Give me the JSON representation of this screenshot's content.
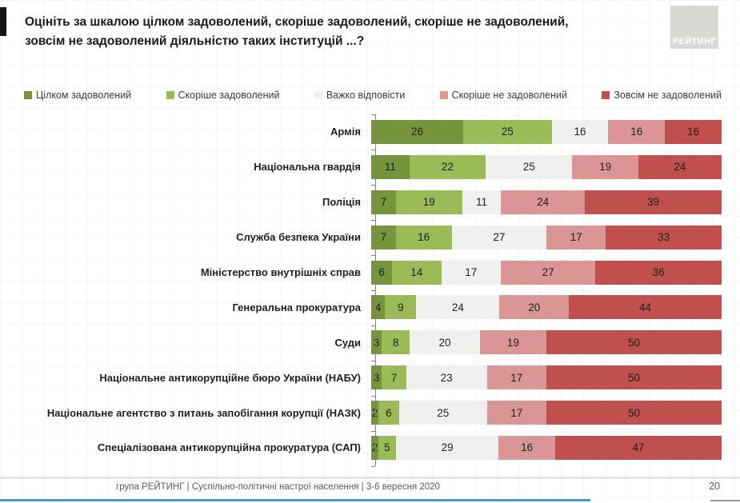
{
  "title": {
    "line1": "Оцініть за шкалою цілком задоволений, скоріше задоволений, скоріше не задоволений,",
    "line2": "зовсім не задоволений діяльністю таких інституцій ...?"
  },
  "logo": {
    "label": "РЕЙТИНГ"
  },
  "chart_data": {
    "type": "bar",
    "stacked": true,
    "orientation": "horizontal",
    "xlim": [
      0,
      100
    ],
    "legend_position": "top",
    "series_names": [
      "Цілком задоволений",
      "Скоріше задоволений",
      "Важко відповісти",
      "Скоріше не задоволений",
      "Зовсім не задоволений"
    ],
    "series_colors": [
      "#77933c",
      "#9bbb59",
      "#f0f0ee",
      "#d99694",
      "#c0504d"
    ],
    "categories": [
      "Армія",
      "Національна гвардія",
      "Поліція",
      "Служба безпека України",
      "Міністерство внутрішніх справ",
      "Генеральна прокуратура",
      "Суди",
      "Національне антикорупційне бюро України (НАБУ)",
      "Національне агентство з питань запобігання корупції (НАЗК)",
      "Спеціалізована антикорупційна прокуратура (САП)"
    ],
    "rows": [
      [
        26,
        25,
        16,
        16,
        16
      ],
      [
        11,
        22,
        25,
        19,
        24
      ],
      [
        7,
        19,
        11,
        24,
        39
      ],
      [
        7,
        16,
        27,
        17,
        33
      ],
      [
        6,
        14,
        17,
        27,
        36
      ],
      [
        4,
        9,
        24,
        20,
        44
      ],
      [
        3,
        8,
        20,
        19,
        50
      ],
      [
        3,
        7,
        23,
        17,
        50
      ],
      [
        2,
        6,
        25,
        17,
        50
      ],
      [
        2,
        5,
        29,
        16,
        47
      ]
    ]
  },
  "footer": {
    "source": "група РЕЙТИНГ | Суспільно-політичні настрої населення | 3-6 вересня 2020",
    "page": "20"
  },
  "colors": {
    "accent_blue_line": "#36a0c6",
    "logo_box": "#d8d8d5",
    "axis": "#7f7f7f"
  }
}
